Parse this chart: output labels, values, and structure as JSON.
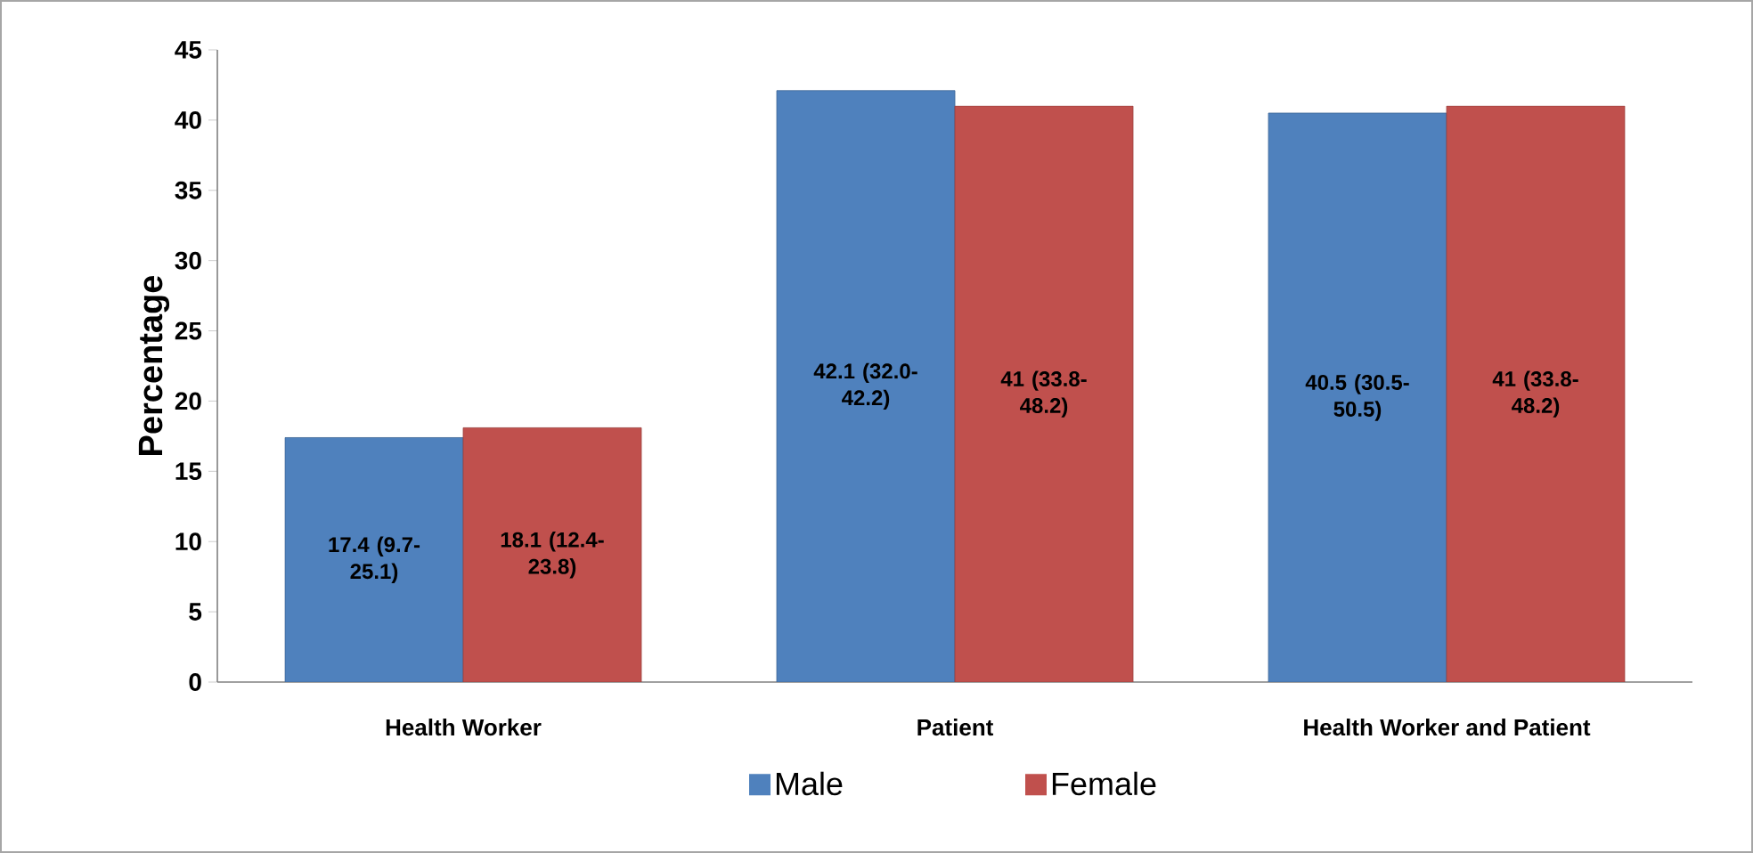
{
  "chart_data": {
    "type": "bar",
    "ylabel": "Percentage",
    "categories": [
      "Health Worker",
      "Patient",
      "Health Worker and Patient"
    ],
    "series": [
      {
        "name": "Male",
        "color": "#4f81bd",
        "values": [
          17.4,
          42.1,
          40.5
        ],
        "value_labels": [
          "17.4 (9.7-25.1)",
          "42.1 (32.0-42.2)",
          "40.5 (30.5-50.5)"
        ]
      },
      {
        "name": "Female",
        "color": "#c0504d",
        "values": [
          18.1,
          41,
          41
        ],
        "value_labels": [
          "18.1 (12.4-23.8)",
          "41 (33.8-48.2)",
          "41 (33.8-48.2)"
        ]
      }
    ],
    "ylim": [
      0,
      45
    ],
    "yticks": [
      0,
      5,
      10,
      15,
      20,
      25,
      30,
      35,
      40,
      45
    ],
    "grid": false,
    "legend": "bottom"
  }
}
